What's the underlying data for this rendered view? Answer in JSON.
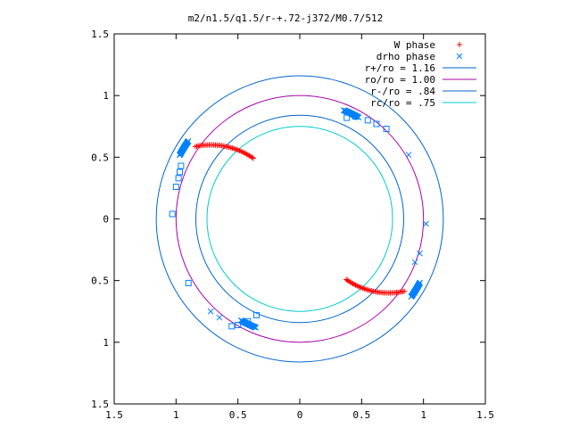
{
  "chart_data": {
    "type": "scatter",
    "title": "m2/n1.5/q1.5/r-+.72-j372/M0.7/512",
    "xlim": [
      -1.5,
      1.5
    ],
    "ylim": [
      -1.5,
      1.5
    ],
    "x_ticks": [
      -1.5,
      -1,
      -0.5,
      0,
      0.5,
      1,
      1.5
    ],
    "x_tick_labels": [
      "1.5",
      "1",
      "0.5",
      "0",
      "0.5",
      "1",
      "1.5"
    ],
    "y_ticks": [
      1.5,
      1,
      0.5,
      0,
      -0.5,
      -1,
      -1.5
    ],
    "y_tick_labels": [
      "1.5",
      "1",
      "0.5",
      "0",
      "0.5",
      "1",
      "1.5"
    ],
    "grid": false,
    "legend_position": "top-right",
    "legend": [
      {
        "label": "W phase",
        "marker": "+",
        "color": "#ff0000"
      },
      {
        "label": "drho phase",
        "marker": "x",
        "color": "#0080ff"
      },
      {
        "label": "r+/ro = 1.16",
        "marker": "line",
        "color": "#0066cc"
      },
      {
        "label": "ro/ro = 1.00",
        "marker": "line",
        "color": "#aa00aa"
      },
      {
        "label": "r-/ro = .84",
        "marker": "line",
        "color": "#0066cc"
      },
      {
        "label": "rc/ro = .75",
        "marker": "line",
        "color": "#00cccc"
      }
    ],
    "circles": [
      {
        "radius": 1.16,
        "color": "#0066cc"
      },
      {
        "radius": 1.0,
        "color": "#aa00aa"
      },
      {
        "radius": 0.84,
        "color": "#0066cc"
      },
      {
        "radius": 0.75,
        "color": "#00cccc"
      }
    ],
    "series": [
      {
        "name": "W phase",
        "marker": "+",
        "color": "#ff0000",
        "arcs": [
          {
            "cx": -0.72,
            "cy": 0.0,
            "r": 0.6,
            "theta_start": 55,
            "theta_end": 102,
            "count": 40
          },
          {
            "cx": 0.72,
            "cy": 0.0,
            "r": 0.6,
            "theta_start": 235,
            "theta_end": 282,
            "count": 40
          }
        ]
      },
      {
        "name": "drho phase",
        "marker": "x",
        "color": "#0080ff",
        "arcs": [
          {
            "cx": 0,
            "cy": 0,
            "r": 1.1,
            "theta_start": 145,
            "theta_end": 152,
            "count": 25
          },
          {
            "cx": 0,
            "cy": 0,
            "r": 1.1,
            "theta_start": 325,
            "theta_end": 332,
            "count": 25
          },
          {
            "cx": 0,
            "cy": 0,
            "r": 0.95,
            "theta_start": 60,
            "theta_end": 68,
            "count": 25
          },
          {
            "cx": 0,
            "cy": 0,
            "r": 0.95,
            "theta_start": 240,
            "theta_end": 248,
            "count": 25
          }
        ],
        "points": [
          [
            0.88,
            0.52
          ],
          [
            1.02,
            -0.04
          ],
          [
            0.97,
            -0.28
          ],
          [
            0.93,
            -0.35
          ],
          [
            -0.72,
            -0.75
          ],
          [
            -0.65,
            -0.8
          ]
        ]
      },
      {
        "name": "squares",
        "marker": "square",
        "color": "#0080ff",
        "points": [
          [
            -1.03,
            0.04
          ],
          [
            -1.0,
            0.26
          ],
          [
            -0.98,
            0.33
          ],
          [
            -0.97,
            0.38
          ],
          [
            -0.96,
            0.43
          ],
          [
            -0.9,
            -0.52
          ],
          [
            0.7,
            0.73
          ],
          [
            0.62,
            0.77
          ],
          [
            0.55,
            0.8
          ],
          [
            0.45,
            0.83
          ],
          [
            0.38,
            0.82
          ],
          [
            -0.35,
            -0.78
          ],
          [
            -0.42,
            -0.83
          ],
          [
            -0.5,
            -0.86
          ],
          [
            -0.55,
            -0.87
          ]
        ]
      }
    ]
  }
}
